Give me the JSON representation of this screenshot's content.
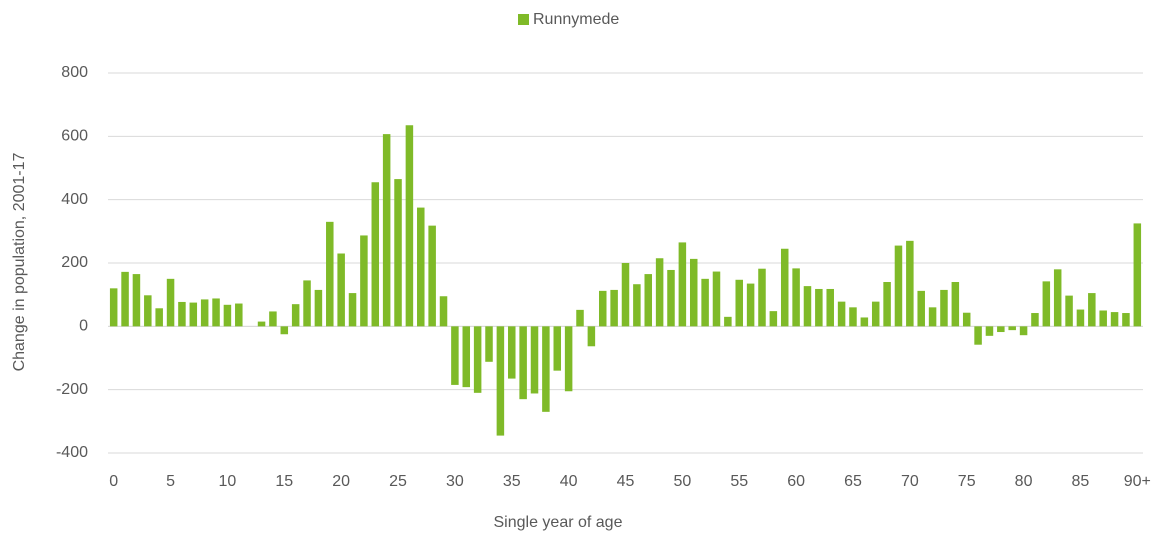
{
  "chart_data": {
    "type": "bar",
    "x_label": "Single year of age",
    "y_label": "Change in population, 2001-17",
    "categories": [
      "0",
      null,
      null,
      null,
      null,
      "5",
      null,
      null,
      null,
      null,
      "10",
      null,
      null,
      null,
      null,
      "15",
      null,
      null,
      null,
      null,
      "20",
      null,
      null,
      null,
      null,
      "25",
      null,
      null,
      null,
      null,
      "30",
      null,
      null,
      null,
      null,
      "35",
      null,
      null,
      null,
      null,
      "40",
      null,
      null,
      null,
      null,
      "45",
      null,
      null,
      null,
      null,
      "50",
      null,
      null,
      null,
      null,
      "55",
      null,
      null,
      null,
      null,
      "60",
      null,
      null,
      null,
      null,
      "65",
      null,
      null,
      null,
      null,
      "70",
      null,
      null,
      null,
      null,
      "75",
      null,
      null,
      null,
      null,
      "80",
      null,
      null,
      null,
      null,
      "85",
      null,
      null,
      null,
      null,
      "90+"
    ],
    "series": [
      {
        "name": "Runnymede",
        "color": "#7fba28",
        "values": [
          120,
          172,
          165,
          98,
          57,
          150,
          77,
          75,
          85,
          88,
          68,
          72,
          0,
          15,
          47,
          -25,
          70,
          145,
          115,
          330,
          230,
          105,
          287,
          455,
          607,
          465,
          635,
          375,
          318,
          95,
          -185,
          -192,
          -210,
          -112,
          -345,
          -165,
          -230,
          -212,
          -270,
          -140,
          -205,
          52,
          -63,
          112,
          115,
          200,
          133,
          165,
          215,
          178,
          265,
          213,
          150,
          173,
          30,
          147,
          135,
          182,
          48,
          245,
          183,
          127,
          118,
          118,
          78,
          60,
          28,
          78,
          140,
          255,
          270,
          112,
          60,
          115,
          140,
          43,
          -58,
          -30,
          -18,
          -12,
          -28,
          42,
          142,
          180,
          97,
          53,
          105,
          50,
          45,
          42,
          325
        ]
      }
    ],
    "ylim": [
      -400,
      800
    ],
    "yticks": [
      -400,
      -200,
      0,
      200,
      400,
      600,
      800
    ],
    "grid": true,
    "legend": "top"
  }
}
